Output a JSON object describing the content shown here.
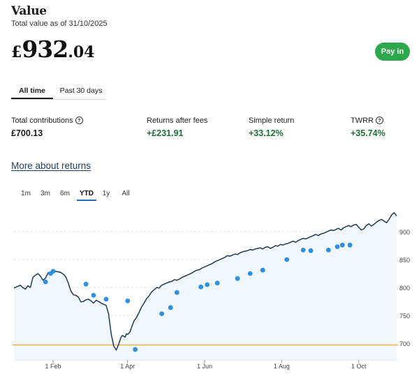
{
  "header": {
    "title": "Value",
    "subtitle": "Total value as of 31/10/2025"
  },
  "total_value": {
    "currency": "£",
    "integer": "932",
    "decimal": ".04"
  },
  "pay_in": {
    "label": "Pay in",
    "color": "#2ea84c"
  },
  "period_tabs": [
    {
      "label": "All time",
      "active": true
    },
    {
      "label": "Past 30 days",
      "active": false
    }
  ],
  "stats": [
    {
      "label": "Total contributions",
      "value": "£700.13",
      "help": true,
      "positive": false
    },
    {
      "label": "Returns after fees",
      "value": "+£231.91",
      "help": false,
      "positive": true
    },
    {
      "label": "Simple return",
      "value": "+33.12%",
      "help": false,
      "positive": true
    },
    {
      "label": "TWRR",
      "value": "+35.74%",
      "help": true,
      "positive": true
    }
  ],
  "help_glyph": "?",
  "more_link": "More about returns",
  "chart_ranges": [
    {
      "label": "1m",
      "active": false
    },
    {
      "label": "3m",
      "active": false
    },
    {
      "label": "6m",
      "active": false
    },
    {
      "label": "YTD",
      "active": true
    },
    {
      "label": "1y",
      "active": false
    },
    {
      "label": "All",
      "active": false
    }
  ],
  "chart_data": {
    "type": "line",
    "series": [
      {
        "name": "Portfolio value",
        "x": [
          0,
          2,
          5,
          7,
          9,
          11,
          13,
          15,
          17,
          19,
          21,
          23,
          25,
          27,
          29,
          31,
          33,
          35,
          37,
          39,
          41,
          43,
          45,
          47,
          49,
          51,
          53,
          55,
          57,
          59,
          61,
          63,
          65,
          67,
          69,
          71,
          73,
          75,
          77,
          79,
          81,
          83,
          85,
          86,
          88,
          89,
          90,
          91,
          92,
          93,
          95,
          97,
          99,
          101,
          103,
          105,
          107,
          109,
          111,
          113,
          115,
          117,
          119,
          121,
          123,
          125,
          127,
          129,
          131,
          133,
          135,
          137,
          139,
          141,
          143,
          145,
          147,
          149,
          151,
          153,
          155,
          157,
          159,
          161,
          163,
          165,
          167,
          169,
          171,
          173,
          175,
          177,
          179,
          181,
          183,
          185,
          187,
          189,
          191,
          193,
          195,
          197,
          199,
          201,
          203,
          205,
          207,
          209,
          211,
          213,
          215,
          217,
          219,
          221,
          223,
          225,
          227,
          229,
          231,
          233,
          235,
          237,
          239,
          241,
          243,
          245,
          247,
          249,
          251,
          253,
          255,
          257,
          259,
          261,
          263,
          265,
          267,
          269,
          271,
          273,
          275,
          277,
          279,
          281,
          283,
          285,
          287,
          289,
          291,
          293,
          295,
          297,
          299,
          301,
          303
        ],
        "values": [
          799,
          801,
          804,
          800,
          797,
          803,
          800,
          818,
          822,
          825,
          820,
          813,
          817,
          826,
          828,
          827,
          829,
          828,
          827,
          824,
          819,
          808,
          794,
          787,
          786,
          783,
          774,
          775,
          778,
          779,
          776,
          772,
          777,
          775,
          772,
          770,
          768,
          752,
          716,
          695,
          688,
          699,
          712,
          714,
          711,
          717,
          716,
          718,
          721,
          728,
          740,
          746,
          755,
          765,
          772,
          780,
          785,
          792,
          796,
          800,
          799,
          804,
          806,
          808,
          810,
          811,
          814,
          813,
          815,
          818,
          820,
          822,
          824,
          826,
          829,
          831,
          832,
          835,
          837,
          839,
          841,
          843,
          846,
          848,
          850,
          852,
          854,
          857,
          856,
          858,
          860,
          859,
          862,
          864,
          865,
          866,
          868,
          867,
          869,
          870,
          871,
          869,
          872,
          873,
          870,
          872,
          875,
          874,
          877,
          876,
          878,
          879,
          881,
          883,
          881,
          884,
          886,
          888,
          887,
          889,
          891,
          893,
          895,
          893,
          896,
          897,
          899,
          901,
          903,
          902,
          904,
          906,
          903,
          907,
          909,
          911,
          909,
          912,
          913,
          908,
          903,
          905,
          911,
          914,
          910,
          913,
          917,
          920,
          922,
          919,
          916,
          922,
          930,
          934,
          928
        ]
      },
      {
        "name": "Total contributions",
        "values": [
          697,
          697
        ]
      }
    ],
    "transaction_points": [
      [
        25,
        810
      ],
      [
        29,
        825
      ],
      [
        31,
        829
      ],
      [
        57,
        806
      ],
      [
        63,
        786
      ],
      [
        73,
        779
      ],
      [
        90,
        776
      ],
      [
        96,
        689
      ],
      [
        117,
        753
      ],
      [
        124,
        764
      ],
      [
        129,
        791
      ],
      [
        148,
        801
      ],
      [
        153,
        805
      ],
      [
        161,
        808
      ],
      [
        177,
        816
      ],
      [
        187,
        825
      ],
      [
        197,
        831
      ],
      [
        216,
        850
      ],
      [
        229,
        867
      ],
      [
        235,
        866
      ],
      [
        249,
        867
      ],
      [
        256,
        873
      ],
      [
        260,
        876
      ],
      [
        266,
        876
      ]
    ],
    "x_max": 303,
    "ylim": [
      670,
      945
    ],
    "yticks": [
      700,
      750,
      800,
      850,
      900
    ],
    "x_tick_labels": [
      {
        "label": "1 Feb",
        "x": 31
      },
      {
        "label": "1 Apr",
        "x": 90
      },
      {
        "label": "1 Jun",
        "x": 151
      },
      {
        "label": "1 Aug",
        "x": 212
      },
      {
        "label": "1 Oct",
        "x": 273
      }
    ],
    "colors": {
      "line": "#1d3a55",
      "fill": "#f0f7fd",
      "points": "#2f8fe0",
      "baseline": "#f0b84f",
      "grid": "#e2e2e2"
    }
  }
}
